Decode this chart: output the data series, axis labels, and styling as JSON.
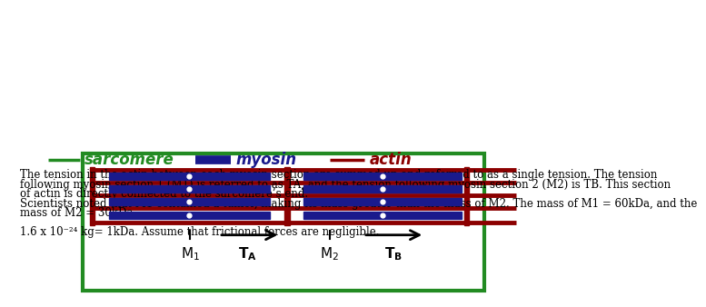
{
  "bg_color": "#ffffff",
  "box_color": "#228B22",
  "myosin_color": "#1a1a8c",
  "actin_color": "#8B0000",
  "text_color": "#000000",
  "sarcomere_legend_color": "#228B22",
  "myosin_legend_color": "#1a1a8c",
  "actin_legend_color": "#8B0000",
  "legend_sarcomere": "sarcomere",
  "legend_myosin": "myosin",
  "legend_actin": "actin",
  "body_text1": "The tension in the actin between each myosin section are summed up and referred to as a single tension. The tension",
  "body_text2": "following myosin section 1 (M1) is referred to as TA, and the tension following myosin section 2 (M2) is TB. This section",
  "body_text3": "of actin is directly connected to the sarcomere’s end.",
  "body_text4": "Scientists noted that M1 contained a tumor, making its mass greater than the mass of M2. The mass of M1 = 60kDa, and the",
  "body_text5": "mass of M2 = 30kDa.",
  "body_text6": "1.6 x 10⁻²⁴ kg= 1kDa. Assume that frictional forces are negligible."
}
